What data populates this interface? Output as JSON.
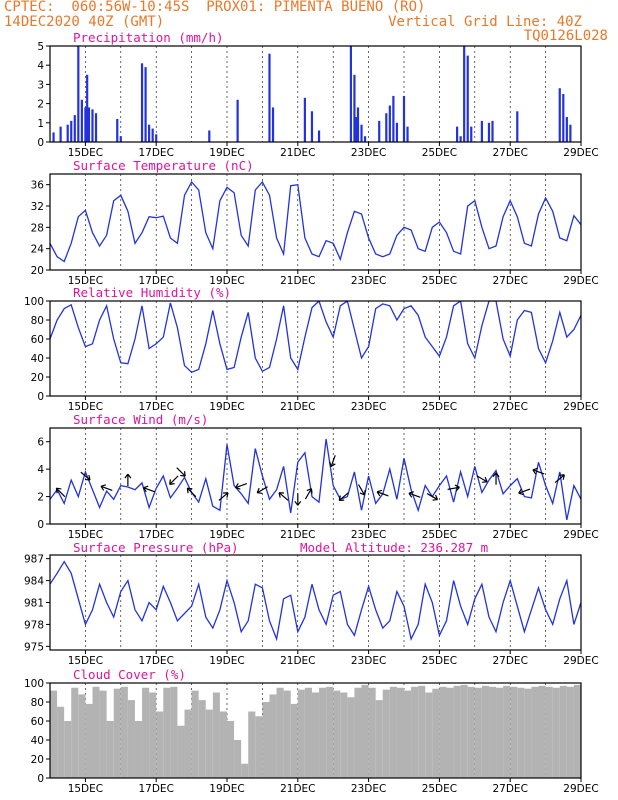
{
  "header": {
    "line1": "CPTEC:  060:56W-10:45S  PROX01: PIMENTA BUENO (RO)",
    "line2_left": "14DEC2020 40Z (GMT)",
    "line2_right": "Vertical Grid Line: 40Z",
    "line3_right": "TQ0126L028"
  },
  "colors": {
    "header": "#e8782a",
    "title": "#e0149c",
    "series": "#2233dd",
    "cloud": "#b3b3b3"
  },
  "x_ticks": [
    "15DEC",
    "17DEC",
    "19DEC",
    "21DEC",
    "23DEC",
    "25DEC",
    "27DEC",
    "29DEC"
  ],
  "chart_data": [
    {
      "type": "bar",
      "title": "Precipitation (mm/h)",
      "ylim": [
        0,
        5
      ],
      "yticks": [
        0,
        1,
        2,
        3,
        4,
        5
      ],
      "x": [
        14.1,
        14.3,
        14.5,
        14.6,
        14.7,
        14.8,
        14.9,
        15.0,
        15.05,
        15.1,
        15.2,
        15.3,
        15.9,
        16.0,
        16.6,
        16.7,
        16.8,
        16.9,
        17.0,
        18.5,
        19.3,
        20.2,
        20.3,
        21.2,
        21.4,
        21.6,
        22.5,
        22.6,
        22.65,
        22.7,
        22.8,
        22.9,
        23.3,
        23.5,
        23.6,
        23.7,
        23.8,
        24.0,
        24.1,
        25.5,
        25.6,
        25.7,
        25.8,
        25.9,
        26.2,
        26.4,
        26.5,
        27.2,
        28.4,
        28.5,
        28.6,
        28.7
      ],
      "values": [
        0.5,
        0.8,
        0.9,
        1.1,
        1.4,
        5.0,
        2.2,
        1.8,
        3.5,
        1.8,
        1.7,
        1.5,
        1.2,
        0.3,
        4.1,
        3.9,
        0.9,
        0.7,
        0.4,
        0.6,
        2.2,
        4.6,
        1.8,
        2.3,
        1.6,
        0.6,
        5.0,
        3.5,
        1.3,
        1.8,
        0.9,
        0.3,
        1.1,
        1.5,
        1.9,
        2.4,
        1.0,
        2.4,
        0.8,
        0.8,
        0.3,
        5.0,
        4.5,
        0.8,
        1.1,
        1.0,
        1.1,
        1.6,
        2.8,
        2.5,
        1.3,
        0.9
      ]
    },
    {
      "type": "line",
      "title": "Surface Temperature (nC)",
      "ylim": [
        20,
        38
      ],
      "yticks": [
        20,
        24,
        28,
        32,
        36
      ],
      "x": [
        14,
        14.2,
        14.4,
        14.6,
        14.8,
        15.0,
        15.2,
        15.4,
        15.6,
        15.8,
        16.0,
        16.2,
        16.4,
        16.6,
        16.8,
        17.0,
        17.2,
        17.4,
        17.6,
        17.8,
        18.0,
        18.2,
        18.4,
        18.6,
        18.8,
        19.0,
        19.2,
        19.4,
        19.6,
        19.8,
        20.0,
        20.2,
        20.4,
        20.6,
        20.8,
        21.0,
        21.2,
        21.4,
        21.6,
        21.8,
        22.0,
        22.2,
        22.4,
        22.6,
        22.8,
        23.0,
        23.2,
        23.4,
        23.6,
        23.8,
        24.0,
        24.2,
        24.4,
        24.6,
        24.8,
        25.0,
        25.2,
        25.4,
        25.6,
        25.8,
        26.0,
        26.2,
        26.4,
        26.6,
        26.8,
        27.0,
        27.2,
        27.4,
        27.6,
        27.8,
        28.0,
        28.2,
        28.4,
        28.6,
        28.8,
        29.0
      ],
      "values": [
        25,
        22.5,
        21.6,
        25,
        30,
        31.2,
        27,
        24.5,
        26.5,
        33,
        34,
        31,
        25,
        27,
        30,
        29.8,
        30.1,
        26,
        25,
        34,
        36.5,
        35,
        27,
        24,
        33,
        35.5,
        34.5,
        26.5,
        24.5,
        35,
        36.5,
        34,
        26,
        23,
        35.8,
        36,
        26,
        23,
        22.5,
        25.5,
        25,
        22,
        27,
        31,
        30.5,
        26,
        23,
        22.5,
        23,
        26.5,
        28,
        27.5,
        24,
        23.5,
        28,
        29,
        27,
        23.5,
        23,
        32,
        33,
        28,
        24,
        24.5,
        30,
        33,
        30,
        25,
        24.5,
        30.5,
        33.5,
        31,
        26,
        25.5,
        30.2,
        28.5
      ]
    },
    {
      "type": "line",
      "title": "Relative Humidity (%)",
      "ylim": [
        0,
        100
      ],
      "yticks": [
        0,
        20,
        40,
        60,
        80,
        100
      ],
      "x": [
        14,
        14.2,
        14.4,
        14.6,
        14.8,
        15.0,
        15.2,
        15.4,
        15.6,
        15.8,
        16.0,
        16.2,
        16.4,
        16.6,
        16.8,
        17.0,
        17.2,
        17.4,
        17.6,
        17.8,
        18.0,
        18.2,
        18.4,
        18.6,
        18.8,
        19.0,
        19.2,
        19.4,
        19.6,
        19.8,
        20.0,
        20.2,
        20.4,
        20.6,
        20.8,
        21.0,
        21.2,
        21.4,
        21.6,
        21.8,
        22.0,
        22.2,
        22.4,
        22.6,
        22.8,
        23.0,
        23.2,
        23.4,
        23.6,
        23.8,
        24.0,
        24.2,
        24.4,
        24.6,
        24.8,
        25.0,
        25.2,
        25.4,
        25.6,
        25.8,
        26.0,
        26.2,
        26.4,
        26.6,
        26.8,
        27.0,
        27.2,
        27.4,
        27.6,
        27.8,
        28.0,
        28.2,
        28.4,
        28.6,
        28.8,
        29.0
      ],
      "values": [
        60,
        80,
        92,
        96,
        72,
        52,
        55,
        80,
        95,
        60,
        35,
        34,
        60,
        95,
        50,
        55,
        62,
        98,
        72,
        32,
        25,
        28,
        55,
        90,
        55,
        28,
        30,
        62,
        88,
        40,
        26,
        30,
        60,
        95,
        40,
        28,
        62,
        93,
        100,
        78,
        62,
        95,
        100,
        70,
        40,
        52,
        92,
        97,
        95,
        80,
        92,
        95,
        85,
        62,
        52,
        42,
        62,
        95,
        100,
        55,
        40,
        74,
        100,
        100,
        60,
        42,
        80,
        90,
        88,
        50,
        35,
        58,
        88,
        62,
        70,
        85
      ]
    },
    {
      "type": "line",
      "title": "Surface Wind (m/s)",
      "ylim": [
        0,
        7
      ],
      "yticks": [
        0,
        2,
        4,
        6
      ],
      "x": [
        14,
        14.2,
        14.4,
        14.6,
        14.8,
        15.0,
        15.2,
        15.4,
        15.6,
        15.8,
        16.0,
        16.2,
        16.4,
        16.6,
        16.8,
        17.0,
        17.2,
        17.4,
        17.6,
        17.8,
        18.0,
        18.2,
        18.4,
        18.6,
        18.8,
        19.0,
        19.2,
        19.4,
        19.6,
        19.8,
        20.0,
        20.2,
        20.4,
        20.6,
        20.8,
        21.0,
        21.2,
        21.4,
        21.6,
        21.8,
        22.0,
        22.2,
        22.4,
        22.6,
        22.8,
        23.0,
        23.2,
        23.4,
        23.6,
        23.8,
        24.0,
        24.2,
        24.4,
        24.6,
        24.8,
        25.0,
        25.2,
        25.4,
        25.6,
        25.8,
        26.0,
        26.2,
        26.4,
        26.6,
        26.8,
        27.0,
        27.2,
        27.4,
        27.6,
        27.8,
        28.0,
        28.2,
        28.4,
        28.6,
        28.8,
        29.0
      ],
      "values": [
        1.8,
        2.5,
        1.5,
        3.2,
        2.0,
        3.8,
        2.5,
        1.2,
        2.4,
        1.8,
        2.8,
        2.7,
        2.5,
        3.0,
        1.2,
        2.6,
        3.5,
        1.9,
        2.6,
        3.4,
        2.3,
        1.6,
        3.3,
        1.3,
        1.0,
        5.8,
        2.8,
        2.2,
        1.5,
        5.5,
        3.5,
        1.8,
        2.5,
        4.2,
        0.8,
        4.5,
        5.2,
        2.0,
        1.6,
        6.2,
        2.8,
        1.8,
        2.0,
        3.8,
        1.0,
        3.5,
        1.5,
        2.2,
        4.0,
        1.8,
        4.8,
        2.5,
        1.0,
        2.8,
        2.0,
        2.8,
        3.5,
        1.6,
        3.8,
        2.0,
        4.2,
        2.3,
        3.2,
        3.9,
        2.2,
        2.8,
        3.3,
        2.0,
        1.9,
        4.5,
        2.8,
        1.5,
        3.8,
        0.3,
        2.8,
        1.8
      ]
    },
    {
      "type": "line",
      "title": "Surface Pressure (hPa)",
      "annotation": "Model Altitude: 236.287 m",
      "ylim": [
        974.5,
        987.5
      ],
      "yticks": [
        975,
        978,
        981,
        984,
        987
      ],
      "x": [
        14,
        14.2,
        14.4,
        14.6,
        14.8,
        15.0,
        15.2,
        15.4,
        15.6,
        15.8,
        16.0,
        16.2,
        16.4,
        16.6,
        16.8,
        17.0,
        17.2,
        17.4,
        17.6,
        17.8,
        18.0,
        18.2,
        18.4,
        18.6,
        18.8,
        19.0,
        19.2,
        19.4,
        19.6,
        19.8,
        20.0,
        20.2,
        20.4,
        20.6,
        20.8,
        21.0,
        21.2,
        21.4,
        21.6,
        21.8,
        22.0,
        22.2,
        22.4,
        22.6,
        22.8,
        23.0,
        23.2,
        23.4,
        23.6,
        23.8,
        24.0,
        24.2,
        24.4,
        24.6,
        24.8,
        25.0,
        25.2,
        25.4,
        25.6,
        25.8,
        26.0,
        26.2,
        26.4,
        26.6,
        26.8,
        27.0,
        27.2,
        27.4,
        27.6,
        27.8,
        28.0,
        28.2,
        28.4,
        28.6,
        28.8,
        29.0
      ],
      "values": [
        983.5,
        985,
        986.6,
        985,
        981.5,
        978,
        980,
        983.5,
        981,
        979,
        982.5,
        984,
        980,
        978.5,
        981,
        980,
        983.2,
        981,
        978.5,
        979.5,
        980.5,
        983.5,
        979,
        977.5,
        980,
        984,
        981,
        977,
        978.5,
        983.5,
        983,
        978.5,
        976,
        981.5,
        982,
        977,
        979,
        983.5,
        980,
        978,
        982,
        982.5,
        978,
        976.5,
        980,
        983.2,
        980,
        977.5,
        978.5,
        982.5,
        980.5,
        976,
        978,
        983.5,
        981,
        976.5,
        978.5,
        984,
        980.5,
        978,
        981.5,
        983.5,
        979,
        977,
        981,
        984,
        980.5,
        977,
        980,
        983,
        980,
        978,
        981.5,
        984,
        978,
        981
      ]
    },
    {
      "type": "bar",
      "title": "Cloud Cover (%)",
      "ylim": [
        0,
        100
      ],
      "yticks": [
        0,
        20,
        40,
        60,
        80,
        100
      ],
      "x": [
        14.1,
        14.3,
        14.5,
        14.7,
        14.9,
        15.1,
        15.3,
        15.5,
        15.7,
        15.9,
        16.1,
        16.3,
        16.5,
        16.7,
        16.9,
        17.1,
        17.3,
        17.5,
        17.7,
        17.9,
        18.1,
        18.3,
        18.5,
        18.7,
        18.9,
        19.1,
        19.3,
        19.5,
        19.7,
        19.9,
        20.1,
        20.3,
        20.5,
        20.7,
        20.9,
        21.1,
        21.3,
        21.5,
        21.7,
        21.9,
        22.1,
        22.3,
        22.5,
        22.7,
        22.9,
        23.1,
        23.3,
        23.5,
        23.7,
        23.9,
        24.1,
        24.3,
        24.5,
        24.7,
        24.9,
        25.1,
        25.3,
        25.5,
        25.7,
        25.9,
        26.1,
        26.3,
        26.5,
        26.7,
        26.9,
        27.1,
        27.3,
        27.5,
        27.7,
        27.9,
        28.1,
        28.3,
        28.5,
        28.7,
        28.9
      ],
      "values": [
        92,
        75,
        60,
        95,
        88,
        78,
        96,
        92,
        60,
        94,
        96,
        82,
        60,
        95,
        90,
        70,
        95,
        96,
        55,
        72,
        92,
        82,
        72,
        90,
        70,
        60,
        40,
        15,
        70,
        65,
        80,
        88,
        95,
        92,
        78,
        93,
        95,
        90,
        95,
        96,
        92,
        90,
        85,
        95,
        98,
        95,
        82,
        93,
        96,
        95,
        92,
        96,
        97,
        90,
        94,
        96,
        95,
        97,
        98,
        96,
        95,
        97,
        96,
        95,
        97,
        96,
        95,
        94,
        96,
        97,
        96,
        95,
        97,
        96,
        98
      ]
    }
  ]
}
